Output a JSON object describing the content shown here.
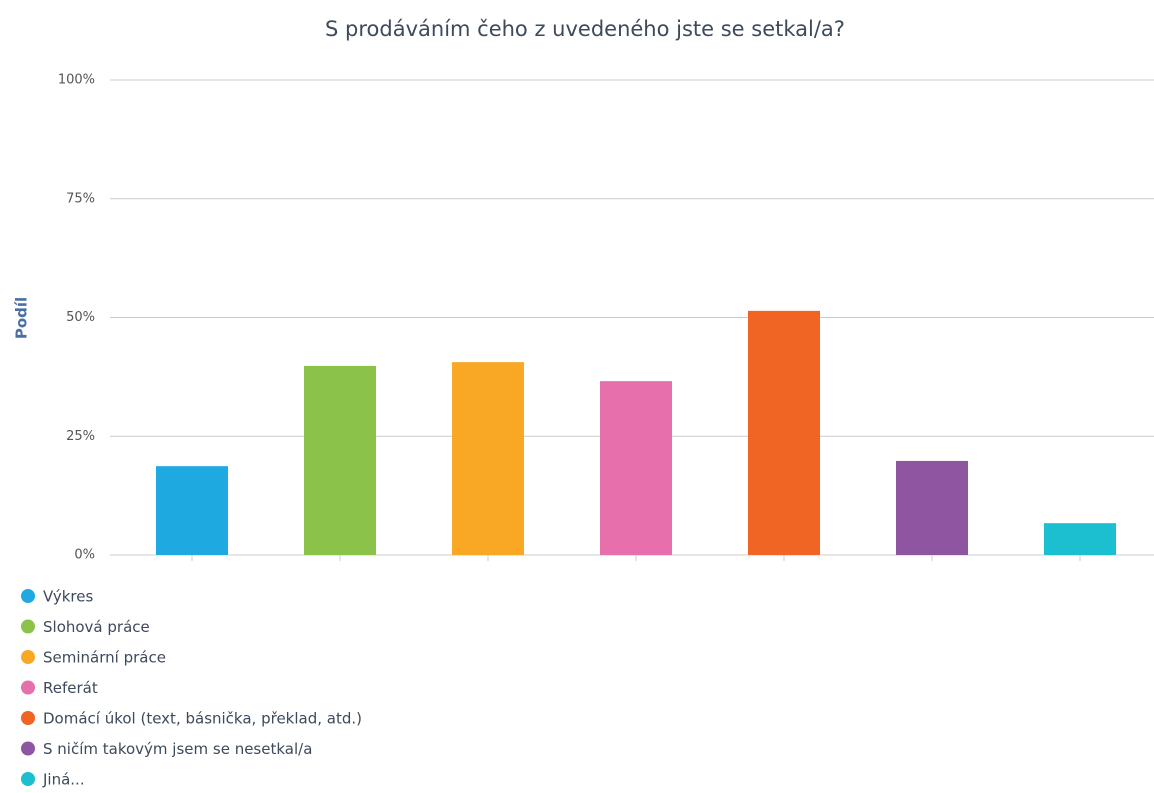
{
  "chart_data": {
    "type": "bar",
    "title": "S prodáváním čeho z uvedeného jste se setkal/a?",
    "ylabel": "Podíl",
    "series": [
      {
        "name": "Výkres",
        "color": "#1fa9e1",
        "values": [
          18.7
        ]
      },
      {
        "name": "Slohová práce",
        "color": "#8bc34a",
        "values": [
          39.8
        ]
      },
      {
        "name": "Seminární práce",
        "color": "#f9a825",
        "values": [
          40.6
        ]
      },
      {
        "name": "Referát",
        "color": "#e76fab",
        "values": [
          36.6
        ]
      },
      {
        "name": "Domácí úkol (text, básnička, překlad, atd.)",
        "color": "#f06424",
        "values": [
          51.4
        ]
      },
      {
        "name": "S ničím takovým jsem se nesetkal/a",
        "color": "#8e55a1",
        "values": [
          19.8
        ]
      },
      {
        "name": "Jiná...",
        "color": "#1bbfcf",
        "values": [
          6.7
        ]
      }
    ],
    "ylim": [
      0,
      100
    ],
    "yticks": [
      {
        "value": 0,
        "label": "0%"
      },
      {
        "value": 25,
        "label": "25%"
      },
      {
        "value": 50,
        "label": "50%"
      },
      {
        "value": 75,
        "label": "75%"
      },
      {
        "value": 100,
        "label": "100%"
      }
    ],
    "grid": true
  }
}
